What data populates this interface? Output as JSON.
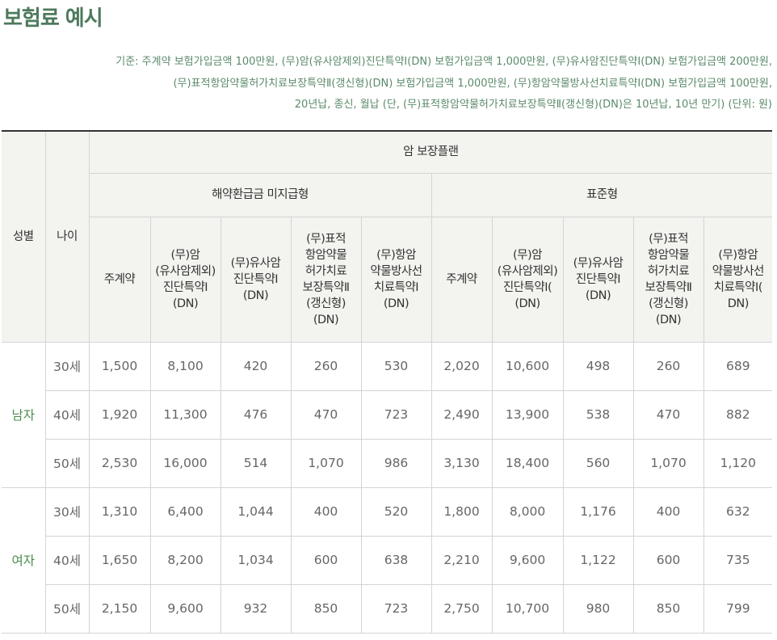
{
  "page": {
    "title": "보험료 예시",
    "basis_lines": [
      "기준: 주계약 보험가입금액 100만원, (무)암(유사암제외)진단특약Ⅰ(DN) 보험가입금액 1,000만원, (무)유사암진단특약Ⅰ(DN) 보험가입금액 200만원,",
      "(무)표적항암약물허가치료보장특약Ⅱ(갱신형)(DN) 보험가입금액 1,000만원, (무)항암약물방사선치료특약Ⅰ(DN) 보험가입금액 100만원,",
      "20년납, 종신, 월납 (단, (무)표적항암약물허가치료보장특약Ⅱ(갱신형)(DN)은 10년납, 10년 만기) (단위: 원)"
    ]
  },
  "table": {
    "header": {
      "gender": "성별",
      "age": "나이",
      "plan": "암 보장플랜",
      "types": [
        "해약환급금 미지급형",
        "표준형"
      ],
      "columns": [
        "주계약",
        "(무)암\n(유사암제외)\n진단특약Ⅰ\n(DN)",
        "(무)유사암\n진단특약Ⅰ\n(DN)",
        "(무)표적\n항암약물\n허가치료\n보장특약Ⅱ\n(갱신형)\n(DN)",
        "(무)항암\n약물방사선\n치료특약Ⅰ\n(DN)",
        "주계약",
        "(무)암\n(유사암제외)\n진단특약Ⅰ(\n(DN)",
        "(무)유사암\n진단특약Ⅰ\n(DN)",
        "(무)표적\n항암약물\n허가치료\n보장특약Ⅱ\n(갱신형)\n(DN)",
        "(무)항암\n약물방사선\n치료특약Ⅰ(\nDN)"
      ]
    },
    "groups": [
      {
        "gender": "남자",
        "rows": [
          {
            "age": "30세",
            "values": [
              "1,500",
              "8,100",
              "420",
              "260",
              "530",
              "2,020",
              "10,600",
              "498",
              "260",
              "689"
            ]
          },
          {
            "age": "40세",
            "values": [
              "1,920",
              "11,300",
              "476",
              "470",
              "723",
              "2,490",
              "13,900",
              "538",
              "470",
              "882"
            ]
          },
          {
            "age": "50세",
            "values": [
              "2,530",
              "16,000",
              "514",
              "1,070",
              "986",
              "3,130",
              "18,400",
              "560",
              "1,070",
              "1,120"
            ]
          }
        ]
      },
      {
        "gender": "여자",
        "rows": [
          {
            "age": "30세",
            "values": [
              "1,310",
              "6,400",
              "1,044",
              "400",
              "520",
              "1,800",
              "8,000",
              "1,176",
              "400",
              "632"
            ]
          },
          {
            "age": "40세",
            "values": [
              "1,650",
              "8,200",
              "1,034",
              "600",
              "638",
              "2,210",
              "9,600",
              "1,122",
              "600",
              "735"
            ]
          },
          {
            "age": "50세",
            "values": [
              "2,150",
              "9,600",
              "932",
              "850",
              "723",
              "2,750",
              "10,700",
              "980",
              "850",
              "799"
            ]
          }
        ]
      }
    ]
  }
}
